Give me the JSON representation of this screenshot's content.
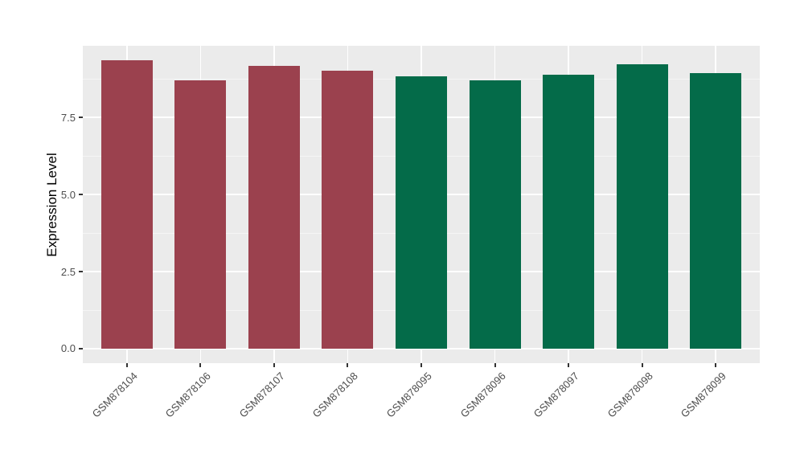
{
  "chart_data": {
    "type": "bar",
    "title": "",
    "xlabel": "",
    "ylabel": "Expression Level",
    "categories": [
      "GSM878104",
      "GSM878106",
      "GSM878107",
      "GSM878108",
      "GSM878095",
      "GSM878096",
      "GSM878097",
      "GSM878098",
      "GSM878099"
    ],
    "values": [
      9.35,
      8.7,
      9.17,
      9.03,
      8.85,
      8.71,
      8.9,
      9.22,
      8.95
    ],
    "bar_colors": [
      "#9B414E",
      "#9B414E",
      "#9B414E",
      "#9B414E",
      "#046B49",
      "#046B49",
      "#046B49",
      "#046B49",
      "#046B49"
    ],
    "groups": [
      {
        "name": "red-group",
        "color": "#9B414E",
        "categories": [
          "GSM878104",
          "GSM878106",
          "GSM878107",
          "GSM878108"
        ]
      },
      {
        "name": "green-group",
        "color": "#046B49",
        "categories": [
          "GSM878095",
          "GSM878096",
          "GSM878097",
          "GSM878098",
          "GSM878099"
        ]
      }
    ],
    "ylim": [
      -0.47,
      9.83
    ],
    "yticks": [
      0.0,
      2.5,
      5.0,
      7.5
    ],
    "ytick_labels": [
      "0.0",
      "2.5",
      "5.0",
      "7.5"
    ],
    "yticks_minor": [
      1.25,
      3.75,
      6.25,
      8.75
    ],
    "x_label_angle": 45,
    "legend": "none",
    "grid": "on",
    "theme": "ggplot-gray"
  },
  "style": {
    "page_bg": "#FFFFFF",
    "panel_bg": "#EBEBEB",
    "grid_major_color": "#FFFFFF",
    "grid_minor_color": "#F5F5F5",
    "tick_color": "#333333",
    "tick_label_color": "#4D4D4D",
    "axis_title_color": "#000000"
  }
}
